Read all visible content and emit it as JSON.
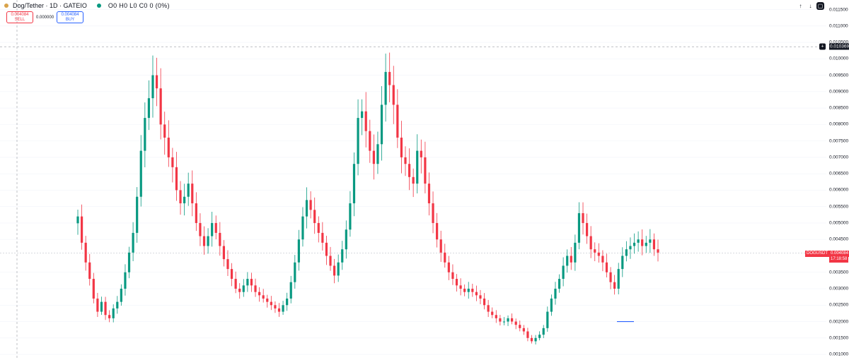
{
  "header": {
    "symbol_title": "Dog/Tether · 1D · GATEIO",
    "ohlc_text": "O0 H0 L0 C0 0 (0%)"
  },
  "trade": {
    "sell_price": "0.004084",
    "sell_label": "SELL",
    "spread": "0.000000",
    "buy_price": "0.004084",
    "buy_label": "BUY"
  },
  "toolbar": {
    "up_icon": "↑",
    "down_icon": "↓",
    "box_icon": "▢"
  },
  "crosshair": {
    "price_label": "0.010369",
    "plus_icon": "+"
  },
  "price_tag": {
    "symbol": "DOGUSDT",
    "price": "0.004084",
    "countdown": "17:18:58"
  },
  "colors": {
    "up": "#089981",
    "down": "#f23645",
    "accent": "#2962ff",
    "grid": "#f0f3fa"
  },
  "chart_data": {
    "type": "candlestick",
    "symbol": "DOGUSDT",
    "timeframe": "1D",
    "exchange": "GATEIO",
    "ylim": [
      0.00098,
      0.01164
    ],
    "y_ticks": [
      "0.011500",
      "0.011000",
      "0.010500",
      "0.010000",
      "0.009500",
      "0.009000",
      "0.008500",
      "0.008000",
      "0.007500",
      "0.007000",
      "0.006500",
      "0.006000",
      "0.005500",
      "0.005000",
      "0.004500",
      "0.003500",
      "0.003000",
      "0.002500",
      "0.002000",
      "0.001500",
      "0.001000"
    ],
    "last_price": 0.004084,
    "crosshair_price": 0.010369,
    "grid": true,
    "closes": [
      0.0052,
      0.0044,
      0.0038,
      0.0033,
      0.0027,
      0.0023,
      0.0026,
      0.0022,
      0.0021,
      0.0024,
      0.0026,
      0.003,
      0.0035,
      0.0041,
      0.0047,
      0.0058,
      0.0072,
      0.0082,
      0.0088,
      0.0095,
      0.0091,
      0.008,
      0.0076,
      0.007,
      0.0067,
      0.006,
      0.0056,
      0.0058,
      0.0062,
      0.0056,
      0.005,
      0.0046,
      0.0043,
      0.0046,
      0.005,
      0.0047,
      0.0043,
      0.0039,
      0.0036,
      0.0033,
      0.003,
      0.0029,
      0.0031,
      0.0033,
      0.0031,
      0.0029,
      0.0028,
      0.0027,
      0.0026,
      0.0025,
      0.0024,
      0.0023,
      0.0025,
      0.0027,
      0.0032,
      0.0038,
      0.0045,
      0.0052,
      0.0057,
      0.0054,
      0.005,
      0.0047,
      0.0044,
      0.004,
      0.0037,
      0.0034,
      0.0038,
      0.0042,
      0.0048,
      0.0056,
      0.0068,
      0.0082,
      0.0084,
      0.0078,
      0.0072,
      0.0068,
      0.0074,
      0.0086,
      0.0096,
      0.0092,
      0.0086,
      0.0076,
      0.007,
      0.0068,
      0.0064,
      0.0062,
      0.0072,
      0.007,
      0.0062,
      0.0056,
      0.005,
      0.0045,
      0.0041,
      0.0038,
      0.0035,
      0.0033,
      0.0031,
      0.003,
      0.0029,
      0.003,
      0.0029,
      0.0028,
      0.0027,
      0.0025,
      0.0023,
      0.0022,
      0.0021,
      0.002,
      0.002,
      0.0021,
      0.002,
      0.0019,
      0.0018,
      0.0017,
      0.0015,
      0.0014,
      0.0015,
      0.0016,
      0.0018,
      0.0023,
      0.0027,
      0.003,
      0.0033,
      0.0037,
      0.004,
      0.0038,
      0.0044,
      0.0053,
      0.005,
      0.0046,
      0.0042,
      0.0041,
      0.004,
      0.0038,
      0.0035,
      0.0032,
      0.003,
      0.0036,
      0.004,
      0.0042,
      0.0043,
      0.0044,
      0.0045,
      0.0043,
      0.0044,
      0.0045,
      0.0042,
      0.0041
    ],
    "horizontal_line": {
      "price": 0.002
    }
  }
}
